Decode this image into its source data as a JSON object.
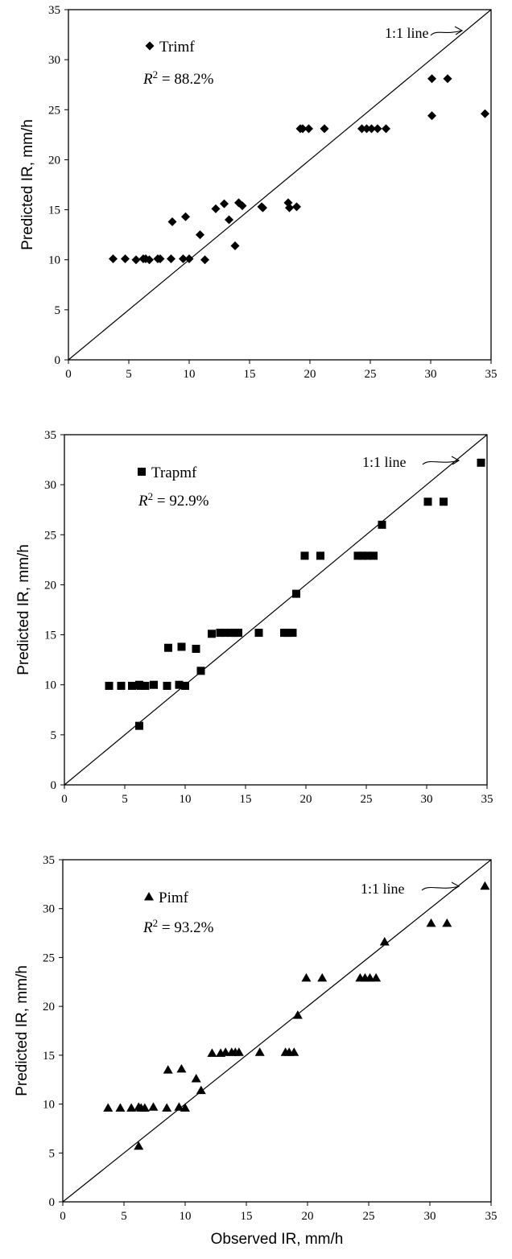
{
  "chart_data": [
    {
      "type": "scatter",
      "ylabel": "Predicted IR, mm/h",
      "xlabel": "",
      "xlim": [
        0,
        35
      ],
      "ylim": [
        0,
        35
      ],
      "xticks": [
        "0",
        "5",
        "10",
        "15",
        "20",
        "25",
        "30",
        "35"
      ],
      "yticks": [
        "0",
        "5",
        "10",
        "15",
        "20",
        "25",
        "30",
        "35"
      ],
      "grid": false,
      "marker": "diamond",
      "legend_label": "Trimf",
      "r2_value": "88.2%",
      "line_label": "1:1 line",
      "series": [
        {
          "name": "Trimf",
          "points": [
            [
              3.7,
              10.1
            ],
            [
              4.7,
              10.1
            ],
            [
              5.6,
              10.0
            ],
            [
              6.2,
              10.1
            ],
            [
              6.4,
              10.1
            ],
            [
              6.7,
              10.0
            ],
            [
              7.4,
              10.1
            ],
            [
              7.6,
              10.1
            ],
            [
              8.5,
              10.1
            ],
            [
              8.6,
              13.8
            ],
            [
              9.5,
              10.1
            ],
            [
              9.7,
              14.3
            ],
            [
              10.0,
              10.1
            ],
            [
              10.9,
              12.5
            ],
            [
              11.3,
              10.0
            ],
            [
              12.2,
              15.1
            ],
            [
              12.9,
              15.6
            ],
            [
              13.3,
              14.0
            ],
            [
              13.8,
              11.4
            ],
            [
              14.1,
              15.7
            ],
            [
              14.4,
              15.4
            ],
            [
              16.0,
              15.3
            ],
            [
              16.1,
              15.2
            ],
            [
              18.2,
              15.7
            ],
            [
              18.3,
              15.2
            ],
            [
              18.9,
              15.3
            ],
            [
              19.2,
              23.1
            ],
            [
              19.4,
              23.1
            ],
            [
              19.9,
              23.1
            ],
            [
              21.2,
              23.1
            ],
            [
              24.3,
              23.1
            ],
            [
              24.7,
              23.1
            ],
            [
              25.1,
              23.1
            ],
            [
              25.6,
              23.1
            ],
            [
              26.3,
              23.1
            ],
            [
              30.1,
              28.1
            ],
            [
              30.1,
              24.4
            ],
            [
              31.4,
              28.1
            ],
            [
              34.5,
              24.6
            ]
          ]
        }
      ]
    },
    {
      "type": "scatter",
      "ylabel": "Predicted IR, mm/h",
      "xlabel": "",
      "xlim": [
        0,
        35
      ],
      "ylim": [
        0,
        35
      ],
      "xticks": [
        "0",
        "5",
        "10",
        "15",
        "20",
        "25",
        "30",
        "35"
      ],
      "yticks": [
        "0",
        "5",
        "10",
        "15",
        "20",
        "25",
        "30",
        "35"
      ],
      "grid": false,
      "marker": "square",
      "legend_label": "Trapmf",
      "r2_value": "92.9%",
      "line_label": "1:1 line",
      "series": [
        {
          "name": "Trapmf",
          "points": [
            [
              3.7,
              9.9
            ],
            [
              4.7,
              9.9
            ],
            [
              5.6,
              9.9
            ],
            [
              6.2,
              10.0
            ],
            [
              6.3,
              9.9
            ],
            [
              6.7,
              9.9
            ],
            [
              7.4,
              10.0
            ],
            [
              8.5,
              9.9
            ],
            [
              8.6,
              13.7
            ],
            [
              9.5,
              10.0
            ],
            [
              9.7,
              13.8
            ],
            [
              10.0,
              9.9
            ],
            [
              10.9,
              13.6
            ],
            [
              11.3,
              11.4
            ],
            [
              12.2,
              15.1
            ],
            [
              12.9,
              15.2
            ],
            [
              13.3,
              15.2
            ],
            [
              13.8,
              15.2
            ],
            [
              14.1,
              15.2
            ],
            [
              14.4,
              15.2
            ],
            [
              16.1,
              15.2
            ],
            [
              18.2,
              15.2
            ],
            [
              18.5,
              15.2
            ],
            [
              18.9,
              15.2
            ],
            [
              19.2,
              19.1
            ],
            [
              19.9,
              22.9
            ],
            [
              21.2,
              22.9
            ],
            [
              24.3,
              22.9
            ],
            [
              24.7,
              22.9
            ],
            [
              25.1,
              22.9
            ],
            [
              25.6,
              22.9
            ],
            [
              6.2,
              5.9
            ],
            [
              26.3,
              26.0
            ],
            [
              30.1,
              28.3
            ],
            [
              31.4,
              28.3
            ],
            [
              34.5,
              32.2
            ]
          ]
        }
      ]
    },
    {
      "type": "scatter",
      "ylabel": "Predicted IR, mm/h",
      "xlabel": "Observed IR, mm/h",
      "xlim": [
        0,
        35
      ],
      "ylim": [
        0,
        35
      ],
      "xticks": [
        "0",
        "5",
        "10",
        "15",
        "20",
        "25",
        "30",
        "35"
      ],
      "yticks": [
        "0",
        "5",
        "10",
        "15",
        "20",
        "25",
        "30",
        "35"
      ],
      "grid": false,
      "marker": "triangle",
      "legend_label": "Pimf",
      "r2_value": "93.2%",
      "line_label": "1:1 line",
      "series": [
        {
          "name": "Pimf",
          "points": [
            [
              3.7,
              9.6
            ],
            [
              4.7,
              9.6
            ],
            [
              5.6,
              9.6
            ],
            [
              6.2,
              9.7
            ],
            [
              6.4,
              9.6
            ],
            [
              6.7,
              9.6
            ],
            [
              7.4,
              9.7
            ],
            [
              8.5,
              9.6
            ],
            [
              8.6,
              13.5
            ],
            [
              9.5,
              9.7
            ],
            [
              9.7,
              13.6
            ],
            [
              10.0,
              9.6
            ],
            [
              10.9,
              12.6
            ],
            [
              11.3,
              11.4
            ],
            [
              12.2,
              15.2
            ],
            [
              12.9,
              15.2
            ],
            [
              13.3,
              15.3
            ],
            [
              13.8,
              15.3
            ],
            [
              14.1,
              15.3
            ],
            [
              14.4,
              15.3
            ],
            [
              16.1,
              15.3
            ],
            [
              18.2,
              15.3
            ],
            [
              18.5,
              15.3
            ],
            [
              18.9,
              15.3
            ],
            [
              19.2,
              19.1
            ],
            [
              19.9,
              22.9
            ],
            [
              21.2,
              22.9
            ],
            [
              24.3,
              22.9
            ],
            [
              24.7,
              22.9
            ],
            [
              25.1,
              22.9
            ],
            [
              25.6,
              22.9
            ],
            [
              6.2,
              5.7
            ],
            [
              26.3,
              26.6
            ],
            [
              30.1,
              28.5
            ],
            [
              31.4,
              28.5
            ],
            [
              34.5,
              32.3
            ]
          ]
        }
      ]
    }
  ]
}
